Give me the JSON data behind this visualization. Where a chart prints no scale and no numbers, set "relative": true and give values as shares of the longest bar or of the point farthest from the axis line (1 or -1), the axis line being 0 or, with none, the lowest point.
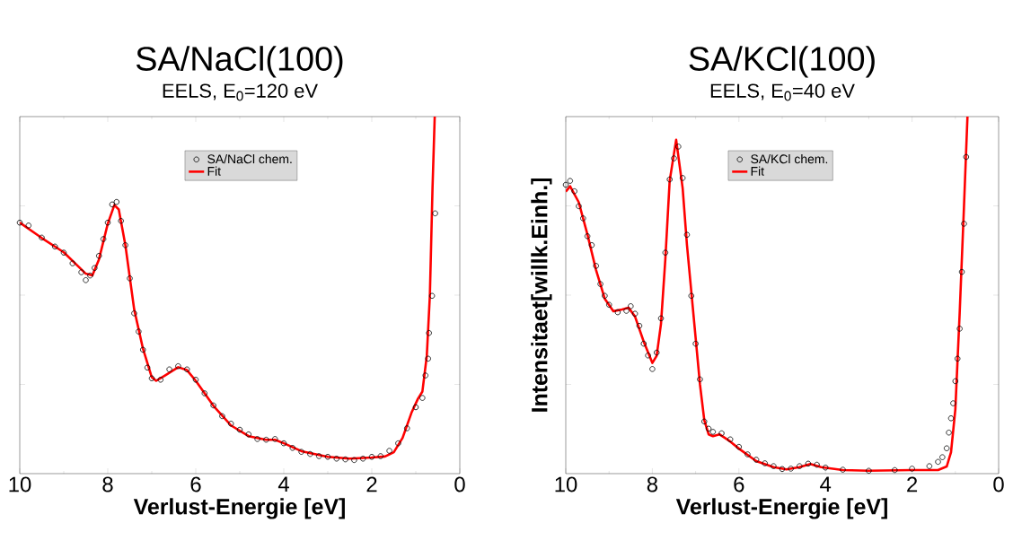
{
  "chart_data": [
    {
      "type": "line",
      "title": "SA/NaCl(100)",
      "subtitle": "EELS, E$_{0}$=120 eV",
      "xlabel": "Verlust-Energie [eV]",
      "relative": true,
      "xlim": [
        10,
        0
      ],
      "xticks": [
        10,
        8,
        6,
        4,
        2,
        0
      ],
      "legend": "top",
      "series": [
        {
          "name": "SA/NaCl chem.",
          "type": "scatter",
          "marker": "circle",
          "color": "#000000",
          "x": [
            10,
            9.8,
            9.5,
            9.2,
            9.0,
            8.8,
            8.6,
            8.5,
            8.4,
            8.3,
            8.2,
            8.1,
            8.0,
            7.9,
            7.8,
            7.7,
            7.6,
            7.5,
            7.4,
            7.3,
            7.2,
            7.1,
            7.0,
            6.8,
            6.6,
            6.4,
            6.2,
            6.0,
            5.8,
            5.6,
            5.4,
            5.2,
            5.0,
            4.8,
            4.6,
            4.4,
            4.2,
            4.0,
            3.8,
            3.6,
            3.4,
            3.2,
            3.0,
            2.8,
            2.6,
            2.4,
            2.2,
            2.0,
            1.8,
            1.6,
            1.4,
            1.2,
            1.0,
            0.85,
            0.78,
            0.72,
            0.7,
            0.63,
            0.56
          ],
          "values": [
            0.703,
            0.695,
            0.661,
            0.636,
            0.619,
            0.589,
            0.564,
            0.542,
            0.555,
            0.576,
            0.61,
            0.657,
            0.703,
            0.754,
            0.761,
            0.708,
            0.64,
            0.547,
            0.449,
            0.398,
            0.347,
            0.297,
            0.267,
            0.263,
            0.292,
            0.301,
            0.292,
            0.263,
            0.225,
            0.191,
            0.161,
            0.14,
            0.123,
            0.11,
            0.097,
            0.095,
            0.097,
            0.085,
            0.072,
            0.061,
            0.055,
            0.049,
            0.047,
            0.042,
            0.04,
            0.038,
            0.042,
            0.047,
            0.049,
            0.064,
            0.085,
            0.127,
            0.186,
            0.212,
            0.275,
            0.322,
            0.394,
            0.498,
            0.729
          ]
        },
        {
          "name": "Fit",
          "color": "#ff0000",
          "x": [
            10,
            9.5,
            9.0,
            8.5,
            8.35,
            8.2,
            8.0,
            7.85,
            7.75,
            7.6,
            7.4,
            7.2,
            7.0,
            6.9,
            6.7,
            6.4,
            6.2,
            6.0,
            5.6,
            5.2,
            4.8,
            4.4,
            4.2,
            4.0,
            3.6,
            3.0,
            2.5,
            2.0,
            1.7,
            1.5,
            1.3,
            1.1,
            0.95,
            0.85,
            0.75,
            0.68,
            0.62,
            0.57
          ],
          "values": [
            0.703,
            0.66,
            0.62,
            0.56,
            0.555,
            0.6,
            0.7,
            0.752,
            0.74,
            0.64,
            0.46,
            0.35,
            0.27,
            0.26,
            0.275,
            0.298,
            0.29,
            0.26,
            0.19,
            0.135,
            0.105,
            0.095,
            0.095,
            0.085,
            0.063,
            0.047,
            0.042,
            0.045,
            0.048,
            0.06,
            0.1,
            0.17,
            0.21,
            0.23,
            0.33,
            0.5,
            0.8,
            1.0
          ]
        }
      ]
    },
    {
      "type": "line",
      "title": "SA/KCl(100)",
      "subtitle": "EELS, E$_{0}$=40 eV",
      "xlabel": "Verlust-Energie [eV]",
      "ylabel": "Intensitaet[willk.Einh.]",
      "relative": true,
      "xlim": [
        10,
        0
      ],
      "xticks": [
        10,
        8,
        6,
        4,
        2,
        0
      ],
      "legend": "top",
      "series": [
        {
          "name": "SA/KCl chem.",
          "type": "scatter",
          "marker": "circle",
          "color": "#000000",
          "x": [
            10,
            9.9,
            9.8,
            9.7,
            9.6,
            9.5,
            9.4,
            9.3,
            9.2,
            9.1,
            9.0,
            8.8,
            8.6,
            8.5,
            8.4,
            8.3,
            8.2,
            8.1,
            8.0,
            7.9,
            7.8,
            7.7,
            7.6,
            7.5,
            7.4,
            7.3,
            7.2,
            7.1,
            7.0,
            6.9,
            6.8,
            6.7,
            6.6,
            6.4,
            6.2,
            6.0,
            5.8,
            5.6,
            5.4,
            5.2,
            5.0,
            4.8,
            4.6,
            4.4,
            4.2,
            4.0,
            3.6,
            3.0,
            2.4,
            2.0,
            1.6,
            1.4,
            1.3,
            1.2,
            1.15,
            1.1,
            1.05,
            1.0,
            0.95,
            0.9,
            0.85,
            0.8,
            0.75
          ],
          "values": [
            0.809,
            0.82,
            0.791,
            0.749,
            0.715,
            0.665,
            0.64,
            0.582,
            0.531,
            0.498,
            0.473,
            0.452,
            0.456,
            0.469,
            0.448,
            0.414,
            0.364,
            0.331,
            0.293,
            0.339,
            0.435,
            0.619,
            0.824,
            0.883,
            0.916,
            0.828,
            0.669,
            0.498,
            0.364,
            0.264,
            0.146,
            0.126,
            0.117,
            0.113,
            0.096,
            0.075,
            0.054,
            0.039,
            0.029,
            0.021,
            0.013,
            0.014,
            0.021,
            0.028,
            0.025,
            0.017,
            0.011,
            0.008,
            0.01,
            0.014,
            0.021,
            0.033,
            0.046,
            0.071,
            0.115,
            0.155,
            0.197,
            0.259,
            0.322,
            0.406,
            0.565,
            0.7,
            0.887
          ]
        },
        {
          "name": "Fit",
          "color": "#ff0000",
          "x": [
            10,
            9.9,
            9.7,
            9.5,
            9.3,
            9.1,
            8.9,
            8.7,
            8.55,
            8.4,
            8.2,
            8.0,
            7.9,
            7.8,
            7.7,
            7.6,
            7.45,
            7.3,
            7.2,
            7.0,
            6.9,
            6.8,
            6.7,
            6.6,
            6.45,
            6.2,
            6.0,
            5.6,
            5.2,
            4.9,
            4.6,
            4.35,
            4.1,
            3.6,
            3.0,
            2.0,
            1.4,
            1.2,
            1.1,
            1.0,
            0.9,
            0.8,
            0.72
          ],
          "values": [
            0.79,
            0.805,
            0.76,
            0.67,
            0.57,
            0.49,
            0.455,
            0.46,
            0.465,
            0.44,
            0.37,
            0.31,
            0.33,
            0.42,
            0.6,
            0.82,
            0.935,
            0.8,
            0.64,
            0.38,
            0.25,
            0.15,
            0.11,
            0.105,
            0.11,
            0.09,
            0.07,
            0.035,
            0.018,
            0.012,
            0.018,
            0.027,
            0.018,
            0.01,
            0.008,
            0.01,
            0.01,
            0.02,
            0.06,
            0.18,
            0.45,
            0.75,
            1.0
          ]
        }
      ]
    }
  ]
}
